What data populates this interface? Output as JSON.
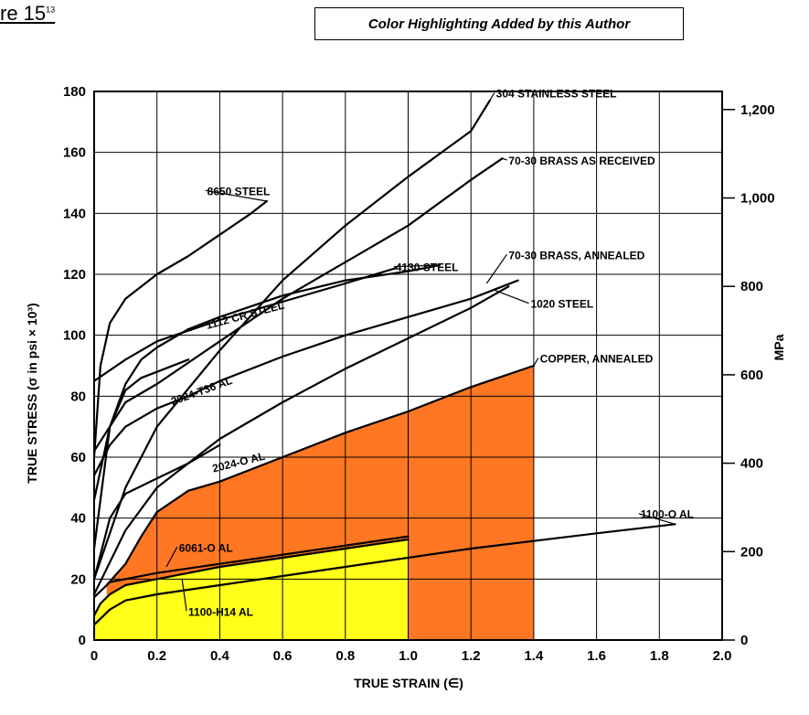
{
  "header": {
    "figure_prefix": "re 15",
    "figure_ref": "13",
    "note": "Color Highlighting Added by this Author"
  },
  "colors": {
    "orange_region": "#ff7722",
    "yellow_region": "#ffff1a",
    "curve": "#000000"
  },
  "chart_data": {
    "type": "line",
    "xlabel": "TRUE STRAIN (∈)",
    "ylabel": "TRUE STRESS (σ in psi × 10³)",
    "y2label": "MPa",
    "xlim": [
      0,
      2.0
    ],
    "ylim": [
      0,
      180
    ],
    "y2lim": [
      0,
      1241
    ],
    "grid": true,
    "x_ticks": [
      "0",
      "0.2",
      "0.4",
      "0.6",
      "0.8",
      "1.0",
      "1.2",
      "1.4",
      "1.6",
      "1.8",
      "2.0"
    ],
    "y_ticks": [
      "0",
      "20",
      "40",
      "60",
      "80",
      "100",
      "120",
      "140",
      "160",
      "180"
    ],
    "y2_ticks": [
      {
        "label": "0",
        "value": 0
      },
      {
        "label": "200",
        "value": 200
      },
      {
        "label": "400",
        "value": 400
      },
      {
        "label": "600",
        "value": 600
      },
      {
        "label": "800",
        "value": 800
      },
      {
        "label": "1,000",
        "value": 1000
      },
      {
        "label": "1,200",
        "value": 1200
      }
    ],
    "highlight_regions": [
      {
        "name": "copper-annealed",
        "color": "#ff7722",
        "points": [
          [
            0.04,
            18
          ],
          [
            0.1,
            25
          ],
          [
            0.15,
            34
          ],
          [
            0.2,
            42
          ],
          [
            0.3,
            49
          ],
          [
            0.4,
            52
          ],
          [
            0.6,
            60
          ],
          [
            0.8,
            68
          ],
          [
            1.0,
            75
          ],
          [
            1.2,
            83
          ],
          [
            1.4,
            90
          ],
          [
            1.4,
            0
          ],
          [
            0.04,
            0
          ]
        ]
      },
      {
        "name": "1100-h14-al",
        "color": "#ffff1a",
        "points": [
          [
            0,
            8
          ],
          [
            0.02,
            12
          ],
          [
            0.05,
            15
          ],
          [
            0.1,
            18
          ],
          [
            0.2,
            20
          ],
          [
            0.3,
            22
          ],
          [
            0.4,
            24
          ],
          [
            0.6,
            27
          ],
          [
            0.8,
            30
          ],
          [
            1.0,
            33
          ],
          [
            1.0,
            0
          ],
          [
            0,
            0
          ]
        ]
      }
    ],
    "series": [
      {
        "name": "304 STAINLESS STEEL",
        "points": [
          [
            0,
            20
          ],
          [
            0.1,
            50
          ],
          [
            0.2,
            70
          ],
          [
            0.4,
            95
          ],
          [
            0.6,
            118
          ],
          [
            0.8,
            136
          ],
          [
            1.0,
            152
          ],
          [
            1.2,
            167
          ],
          [
            1.26,
            177
          ]
        ]
      },
      {
        "name": "8650 STEEL",
        "points": [
          [
            0,
            60
          ],
          [
            0.02,
            90
          ],
          [
            0.05,
            104
          ],
          [
            0.1,
            112
          ],
          [
            0.2,
            120
          ],
          [
            0.3,
            126
          ],
          [
            0.4,
            133
          ],
          [
            0.5,
            140
          ],
          [
            0.55,
            144
          ]
        ]
      },
      {
        "name": "70-30 BRASS AS RECEIVED",
        "points": [
          [
            0,
            62
          ],
          [
            0.1,
            78
          ],
          [
            0.2,
            84
          ],
          [
            0.4,
            98
          ],
          [
            0.6,
            112
          ],
          [
            0.8,
            124
          ],
          [
            1.0,
            136
          ],
          [
            1.2,
            151
          ],
          [
            1.3,
            158
          ]
        ]
      },
      {
        "name": "1112 CR STEEL",
        "points": [
          [
            0,
            85
          ],
          [
            0.1,
            92
          ],
          [
            0.2,
            98
          ],
          [
            0.4,
            105
          ],
          [
            0.6,
            111
          ],
          [
            0.8,
            117
          ],
          [
            0.96,
            122
          ]
        ]
      },
      {
        "name": "4130 STEEL",
        "points": [
          [
            0,
            30
          ],
          [
            0.05,
            70
          ],
          [
            0.1,
            84
          ],
          [
            0.15,
            92
          ],
          [
            0.2,
            96
          ],
          [
            0.3,
            102
          ],
          [
            0.4,
            106
          ],
          [
            0.6,
            113
          ],
          [
            0.8,
            118
          ],
          [
            1.0,
            121
          ],
          [
            1.1,
            123
          ]
        ]
      },
      {
        "name": "70-30 BRASS, ANNEALED",
        "points": [
          [
            0,
            15
          ],
          [
            0.1,
            36
          ],
          [
            0.2,
            50
          ],
          [
            0.4,
            66
          ],
          [
            0.6,
            78
          ],
          [
            0.8,
            89
          ],
          [
            1.0,
            99
          ],
          [
            1.2,
            109
          ],
          [
            1.32,
            116
          ]
        ]
      },
      {
        "name": "1020 STEEL",
        "points": [
          [
            0,
            54
          ],
          [
            0.05,
            64
          ],
          [
            0.1,
            70
          ],
          [
            0.2,
            76
          ],
          [
            0.3,
            80
          ],
          [
            0.4,
            85
          ],
          [
            0.6,
            93
          ],
          [
            0.8,
            100
          ],
          [
            1.0,
            106
          ],
          [
            1.2,
            112
          ],
          [
            1.35,
            118
          ]
        ]
      },
      {
        "name": "2024-T36 AL",
        "points": [
          [
            0,
            46
          ],
          [
            0.05,
            70
          ],
          [
            0.1,
            82
          ],
          [
            0.15,
            86
          ],
          [
            0.2,
            88
          ],
          [
            0.3,
            92
          ]
        ]
      },
      {
        "name": "2024-O AL",
        "points": [
          [
            0,
            20
          ],
          [
            0.05,
            40
          ],
          [
            0.1,
            48
          ],
          [
            0.2,
            53
          ],
          [
            0.3,
            58
          ],
          [
            0.4,
            64
          ]
        ]
      },
      {
        "name": "COPPER, ANNEALED",
        "points": [
          [
            0.04,
            18
          ],
          [
            0.1,
            25
          ],
          [
            0.15,
            34
          ],
          [
            0.2,
            42
          ],
          [
            0.3,
            49
          ],
          [
            0.4,
            52
          ],
          [
            0.6,
            60
          ],
          [
            0.8,
            68
          ],
          [
            1.0,
            75
          ],
          [
            1.2,
            83
          ],
          [
            1.4,
            90
          ]
        ]
      },
      {
        "name": "6061-O AL",
        "points": [
          [
            0,
            14
          ],
          [
            0.05,
            19
          ],
          [
            0.1,
            20
          ],
          [
            0.2,
            22
          ],
          [
            0.4,
            25
          ],
          [
            0.6,
            28
          ],
          [
            0.8,
            31
          ],
          [
            1.0,
            34
          ]
        ]
      },
      {
        "name": "1100-H14 AL",
        "points": [
          [
            0,
            8
          ],
          [
            0.02,
            12
          ],
          [
            0.05,
            15
          ],
          [
            0.1,
            18
          ],
          [
            0.2,
            20
          ],
          [
            0.3,
            22
          ],
          [
            0.4,
            24
          ],
          [
            0.6,
            27
          ],
          [
            0.8,
            30
          ],
          [
            1.0,
            33
          ]
        ]
      },
      {
        "name": "1100-O AL",
        "points": [
          [
            0,
            5
          ],
          [
            0.05,
            10
          ],
          [
            0.1,
            13
          ],
          [
            0.2,
            15
          ],
          [
            0.4,
            18
          ],
          [
            0.8,
            24
          ],
          [
            1.2,
            30
          ],
          [
            1.6,
            35
          ],
          [
            1.85,
            38
          ]
        ]
      }
    ],
    "annotations": [
      {
        "text": "304 STAINLESS STEEL",
        "anchor": [
          1.26,
          177
        ],
        "label": [
          1.28,
          178
        ]
      },
      {
        "text": "8650 STEEL",
        "anchor": [
          0.55,
          144
        ],
        "label": [
          0.36,
          146
        ]
      },
      {
        "text": "70-30 BRASS AS RECEIVED",
        "anchor": [
          1.3,
          158
        ],
        "label": [
          1.32,
          156
        ]
      },
      {
        "text": "1112 CR STEEL",
        "anchor": [
          0.6,
          117
        ],
        "label": [
          0.36,
          102
        ]
      },
      {
        "text": "4130 STEEL",
        "anchor": [
          1.1,
          123
        ],
        "label": [
          0.96,
          121
        ]
      },
      {
        "text": "70-30 BRASS, ANNEALED",
        "anchor": [
          1.25,
          117
        ],
        "label": [
          1.32,
          125
        ]
      },
      {
        "text": "1020 STEEL",
        "anchor": [
          1.27,
          115
        ],
        "label": [
          1.39,
          109
        ]
      },
      {
        "text": "2024-T36 AL",
        "anchor": [
          0.33,
          92
        ],
        "label": [
          0.25,
          77
        ]
      },
      {
        "text": "2024-O AL",
        "anchor": [
          0.54,
          63
        ],
        "label": [
          0.38,
          55
        ]
      },
      {
        "text": "COPPER, ANNEALED",
        "anchor": [
          1.4,
          90
        ],
        "label": [
          1.42,
          91
        ]
      },
      {
        "text": "6061-O AL",
        "anchor": [
          0.23,
          24
        ],
        "label": [
          0.27,
          29
        ]
      },
      {
        "text": "1100-H14 AL",
        "anchor": [
          0.28,
          20
        ],
        "label": [
          0.3,
          8
        ]
      },
      {
        "text": "1100-O AL",
        "anchor": [
          1.85,
          38
        ],
        "label": [
          1.74,
          40
        ]
      }
    ]
  }
}
